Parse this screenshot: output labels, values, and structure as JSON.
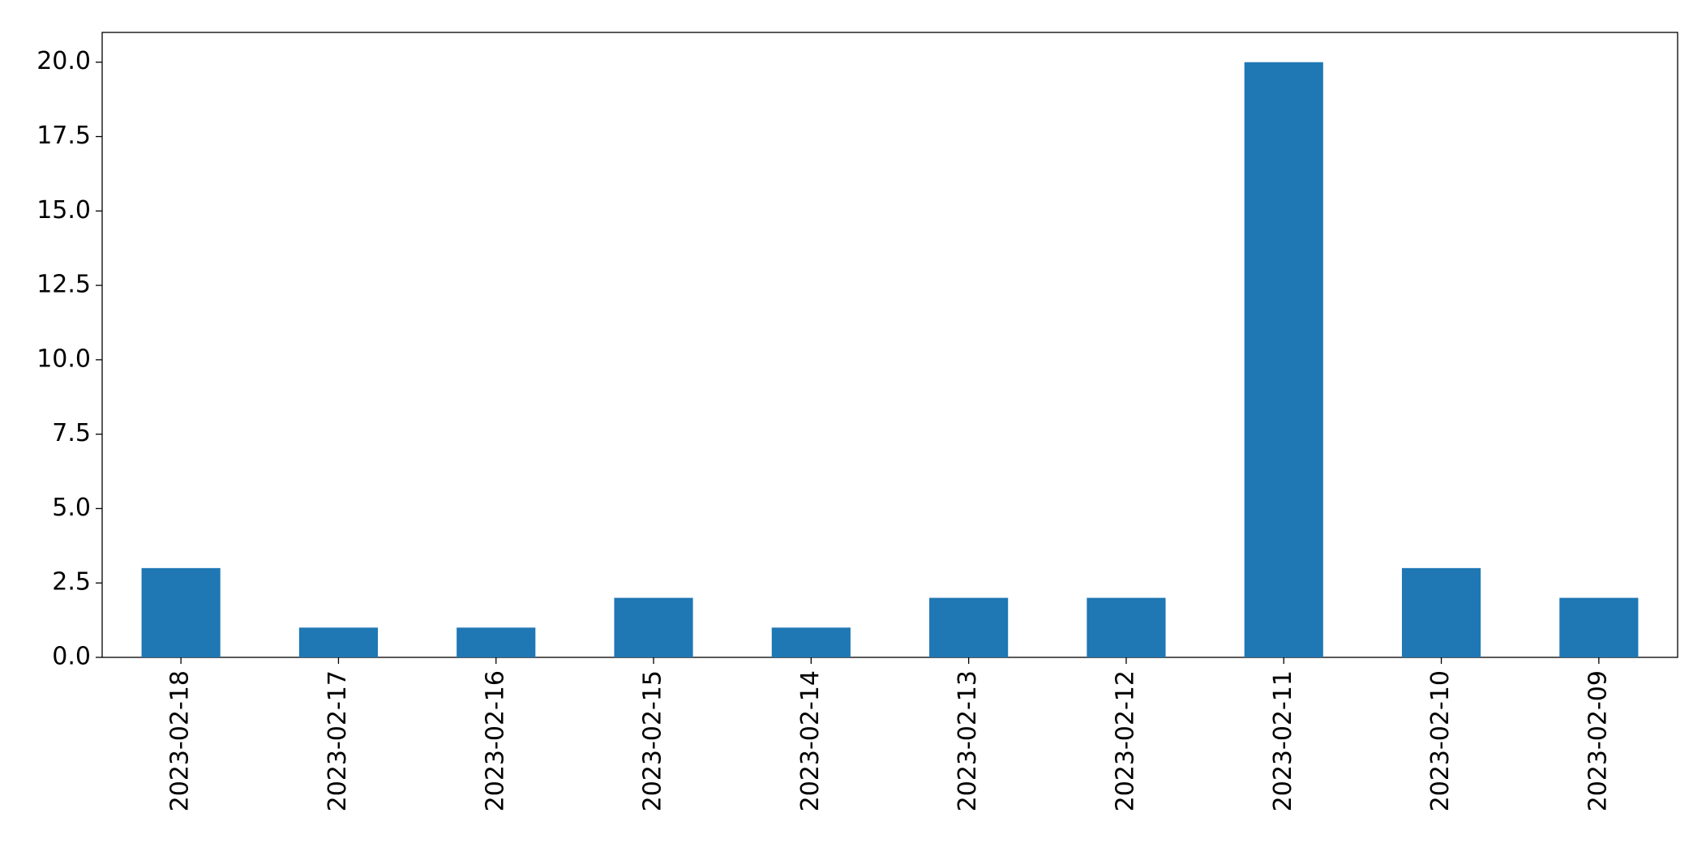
{
  "chart_data": {
    "type": "bar",
    "categories": [
      "2023-02-18",
      "2023-02-17",
      "2023-02-16",
      "2023-02-15",
      "2023-02-14",
      "2023-02-13",
      "2023-02-12",
      "2023-02-11",
      "2023-02-10",
      "2023-02-09"
    ],
    "values": [
      3,
      1,
      1,
      2,
      1,
      2,
      2,
      20,
      3,
      2
    ],
    "color": "#1f77b4",
    "ylim": [
      0,
      21
    ],
    "yticks": [
      {
        "value": 0,
        "label": "0.0"
      },
      {
        "value": 2.5,
        "label": "2.5"
      },
      {
        "value": 5,
        "label": "5.0"
      },
      {
        "value": 7.5,
        "label": "7.5"
      },
      {
        "value": 10,
        "label": "10.0"
      },
      {
        "value": 12.5,
        "label": "12.5"
      },
      {
        "value": 15,
        "label": "15.0"
      },
      {
        "value": 17.5,
        "label": "17.5"
      },
      {
        "value": 20,
        "label": "20.0"
      }
    ],
    "grid": false
  }
}
